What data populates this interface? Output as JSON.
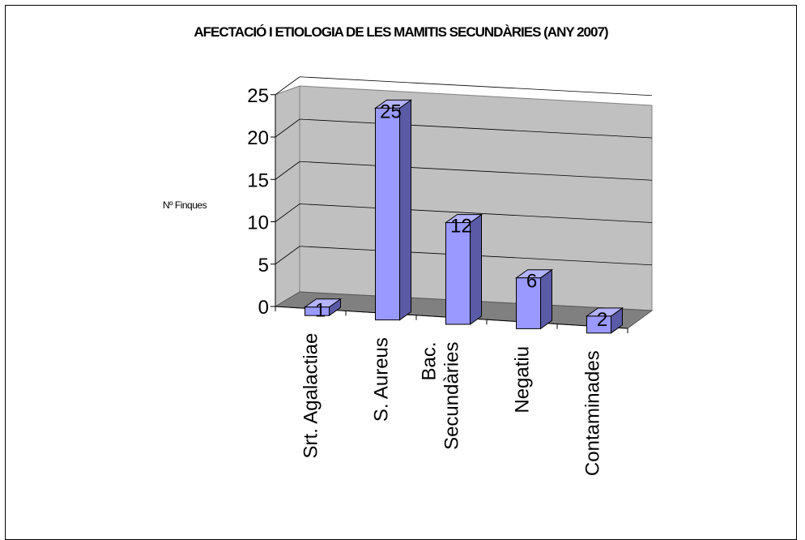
{
  "chart_data": {
    "type": "bar",
    "title": "AFECTACIÓ I ETIOLOGIA DE LES MAMITIS SECUNDÀRIES (ANY 2007)",
    "ylabel": "Nº Finques",
    "xlabel": "",
    "categories": [
      [
        "Srt. Agalactiae"
      ],
      [
        "S. Aureus"
      ],
      [
        "Bac.",
        "Secundàries"
      ],
      [
        "Negatiu"
      ],
      [
        "Contaminades"
      ]
    ],
    "values": [
      1,
      25,
      12,
      6,
      2
    ],
    "data_labels": [
      "1",
      "25",
      "12",
      "6",
      "2"
    ],
    "ylim": [
      0,
      25
    ],
    "yticks": [
      0,
      5,
      10,
      15,
      20,
      25
    ],
    "grid": true,
    "legend": "none",
    "three_d": true,
    "colors": {
      "bar_front": "#9999ff",
      "bar_top": "#b3b3ff",
      "bar_side": "#5a5aa6",
      "back_wall": "#c0c0c0",
      "floor": "#808080"
    }
  }
}
